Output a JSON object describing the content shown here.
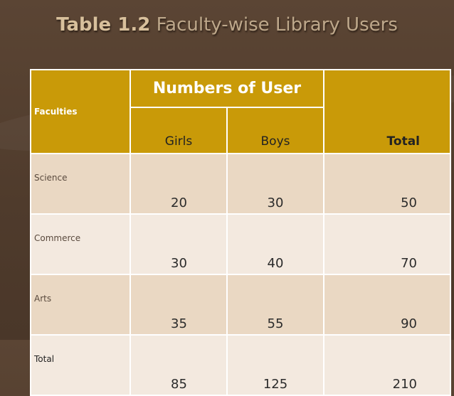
{
  "slide": {
    "title_bold": "Table 1.2",
    "title_rest": "Faculty-wise Library Users"
  },
  "table": {
    "header": {
      "faculties": "Faculties",
      "group_label": "Numbers of User",
      "girls": "Girls",
      "boys": "Boys",
      "total": "Total"
    },
    "rows": [
      {
        "faculty": "Science",
        "girls": "20",
        "boys": "30",
        "total": "50"
      },
      {
        "faculty": "Commerce",
        "girls": "30",
        "boys": "40",
        "total": "70"
      },
      {
        "faculty": "Arts",
        "girls": "35",
        "boys": "55",
        "total": "90"
      },
      {
        "faculty": "Total",
        "girls": "85",
        "boys": "125",
        "total": "210"
      }
    ]
  },
  "colors": {
    "background": "#4f3b2c",
    "header_fill": "#c99a08",
    "row_dark": "#ead8c3",
    "row_light": "#f3e9df",
    "title": "#c9b59a"
  }
}
